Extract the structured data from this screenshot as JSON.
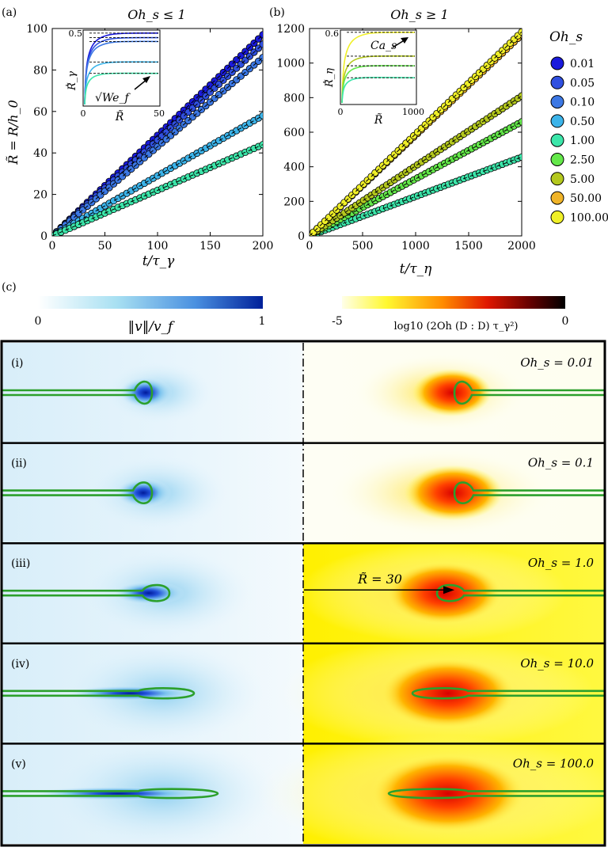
{
  "panel_a": {
    "label": "(a)",
    "title": "Oh_s ≤ 1",
    "ylabel": "R̃ = R/h_0",
    "xlabel": "t/τ_γ",
    "xticks": [
      "0",
      "50",
      "100",
      "150",
      "200"
    ],
    "yticks": [
      "0",
      "20",
      "40",
      "60",
      "80",
      "100"
    ],
    "inset": {
      "ylabel": "Ṙ̃_γ",
      "xlabel": "R̃",
      "xticks": [
        "0",
        "50"
      ],
      "yticks": [
        "0.5"
      ],
      "annotation": "√We_f"
    }
  },
  "panel_b": {
    "label": "(b)",
    "title": "Oh_s ≥ 1",
    "ylabel": "",
    "xlabel": "t/τ_η",
    "xticks": [
      "0",
      "500",
      "1000",
      "1500",
      "2000"
    ],
    "yticks": [
      "0",
      "200",
      "400",
      "600",
      "800",
      "1000",
      "1200"
    ],
    "inset": {
      "ylabel": "Ṙ̃_η",
      "xlabel": "R̃",
      "xticks": [
        "0",
        "1000"
      ],
      "yticks": [
        "0.6"
      ],
      "annotation": "Ca_s"
    }
  },
  "legend": {
    "title": "Oh_s",
    "entries": [
      {
        "label": "0.01",
        "color": "#1a1adc"
      },
      {
        "label": "0.05",
        "color": "#3050e0"
      },
      {
        "label": "0.10",
        "color": "#3c78e4"
      },
      {
        "label": "0.50",
        "color": "#3cb4ea"
      },
      {
        "label": "1.00",
        "color": "#3ce6aa"
      },
      {
        "label": "2.50",
        "color": "#64e84a"
      },
      {
        "label": "5.00",
        "color": "#b4c81e"
      },
      {
        "label": "50.00",
        "color": "#f0b428"
      },
      {
        "label": "100.00",
        "color": "#f0f028"
      }
    ]
  },
  "chart_data": [
    {
      "type": "scatter",
      "title": "Oh_s ≤ 1",
      "xlabel": "t/τ_γ",
      "ylabel": "R̃ = R/h_0",
      "xlim": [
        0,
        200
      ],
      "ylim": [
        0,
        100
      ],
      "series": [
        {
          "name": "0.01",
          "slope": 0.485,
          "x_end": 200
        },
        {
          "name": "0.05",
          "slope": 0.462,
          "x_end": 200
        },
        {
          "name": "0.10",
          "slope": 0.43,
          "x_end": 200
        },
        {
          "name": "0.50",
          "slope": 0.29,
          "x_end": 200
        },
        {
          "name": "1.00",
          "slope": 0.22,
          "x_end": 200
        }
      ]
    },
    {
      "type": "scatter",
      "title": "Oh_s ≥ 1",
      "xlabel": "t/τ_η",
      "ylabel": "",
      "xlim": [
        0,
        2000
      ],
      "ylim": [
        0,
        1200
      ],
      "series": [
        {
          "name": "1.00",
          "slope": 0.228,
          "x_end": 2000
        },
        {
          "name": "2.50",
          "slope": 0.33,
          "x_end": 2000
        },
        {
          "name": "5.00",
          "slope": 0.405,
          "x_end": 2000
        },
        {
          "name": "50.00",
          "slope": 0.582,
          "x_end": 2000
        },
        {
          "name": "100.00",
          "slope": 0.59,
          "x_end": 2000
        }
      ]
    }
  ],
  "panel_c": {
    "label": "(c)",
    "velocity_bar": {
      "min": "0",
      "max": "1",
      "label": "‖v‖/v_f"
    },
    "dissipation_bar": {
      "min": "-5",
      "max": "0",
      "label": "log10 (2Oh (D : D) τ_γ²)"
    },
    "rows": [
      {
        "roman": "(i)",
        "oh": "Oh_s = 0.01"
      },
      {
        "roman": "(ii)",
        "oh": "Oh_s = 0.1"
      },
      {
        "roman": "(iii)",
        "oh": "Oh_s = 1.0"
      },
      {
        "roman": "(iv)",
        "oh": "Oh_s = 10.0"
      },
      {
        "roman": "(v)",
        "oh": "Oh_s = 100.0"
      }
    ],
    "annotation": "R̃ = 30"
  }
}
